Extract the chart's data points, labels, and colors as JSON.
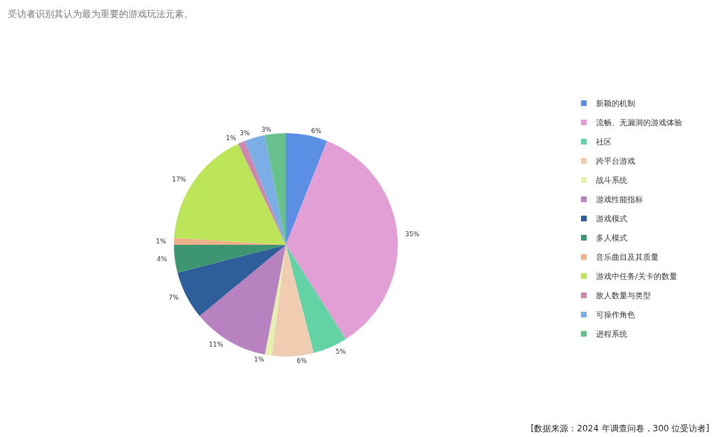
{
  "chart_data": {
    "type": "pie",
    "title": "受访者识别其认为最为重要的游戏玩法元素。",
    "categories": [
      "新颖的机制",
      "流畅、无漏洞的游戏体验",
      "社区",
      "跨平台游戏",
      "战斗系统",
      "游戏性能指标",
      "游戏模式",
      "多人模式",
      "音乐曲目及其质量",
      "游戏中任务/关卡的数量",
      "敌人数量与类型",
      "可操作角色",
      "进程系统"
    ],
    "values": [
      6,
      35,
      5,
      6,
      1,
      11,
      7,
      4,
      1,
      17,
      1,
      3,
      3
    ],
    "value_labels": [
      "6%",
      "35%",
      "5%",
      "6%",
      "1%",
      "11%",
      "7%",
      "4%",
      "1%",
      "17%",
      "1%",
      "3%",
      "3%"
    ],
    "colors": [
      "#5b8fe3",
      "#e29fd5",
      "#63d3a6",
      "#f0cdb1",
      "#e6f0b0",
      "#b882c1",
      "#2f5f9b",
      "#3d9571",
      "#f0b088",
      "#bde55a",
      "#cd86ad",
      "#7baee5",
      "#68c18c"
    ],
    "legend": "right",
    "annotations": [
      "[数据来源：2024 年调查问卷，300 位受访者]"
    ]
  }
}
